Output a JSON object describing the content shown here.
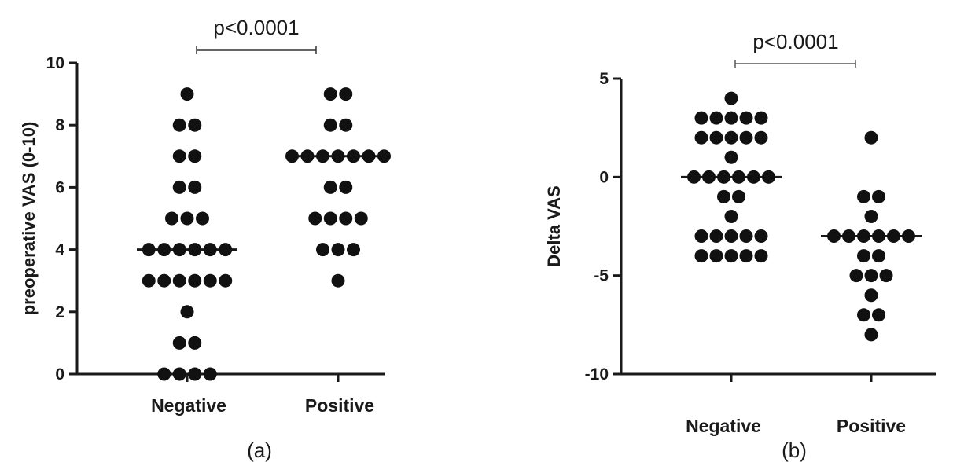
{
  "chart_data": [
    {
      "type": "scatter",
      "panel_label": "(a)",
      "ylabel": "preoperative VAS (0-10)",
      "categories": [
        "Negative",
        "Positive"
      ],
      "ylim": [
        0,
        10
      ],
      "yticks": [
        0,
        2,
        4,
        6,
        8,
        10
      ],
      "grid": false,
      "significance": {
        "text": "p<0.0001",
        "between": [
          "Negative",
          "Positive"
        ]
      },
      "series": [
        {
          "category": "Negative",
          "values": [
            9,
            8,
            8,
            7,
            7,
            6,
            6,
            5,
            5,
            5,
            4,
            4,
            4,
            4,
            4,
            4,
            3,
            3,
            3,
            3,
            3,
            3,
            2,
            1,
            1,
            0,
            0,
            0,
            0
          ],
          "median": 4
        },
        {
          "category": "Positive",
          "values": [
            9,
            9,
            8,
            8,
            7,
            7,
            7,
            7,
            7,
            7,
            7,
            6,
            6,
            5,
            5,
            5,
            5,
            4,
            4,
            4,
            3
          ],
          "median": 7
        }
      ]
    },
    {
      "type": "scatter",
      "panel_label": "(b)",
      "ylabel": "Delta VAS",
      "categories": [
        "Negative",
        "Positive"
      ],
      "ylim": [
        -10,
        5
      ],
      "yticks": [
        -10,
        -5,
        0,
        5
      ],
      "grid": false,
      "significance": {
        "text": "p<0.0001",
        "between": [
          "Negative",
          "Positive"
        ]
      },
      "series": [
        {
          "category": "Negative",
          "values": [
            4,
            3,
            3,
            3,
            3,
            3,
            2,
            2,
            2,
            2,
            2,
            1,
            0,
            0,
            0,
            0,
            0,
            0,
            -1,
            -1,
            -2,
            -3,
            -3,
            -3,
            -3,
            -3,
            -4,
            -4,
            -4,
            -4,
            -4
          ],
          "median": 0
        },
        {
          "category": "Positive",
          "values": [
            2,
            -1,
            -1,
            -2,
            -3,
            -3,
            -3,
            -3,
            -3,
            -3,
            -4,
            -4,
            -5,
            -5,
            -5,
            -6,
            -7,
            -7,
            -8
          ],
          "median": -3
        }
      ]
    }
  ]
}
